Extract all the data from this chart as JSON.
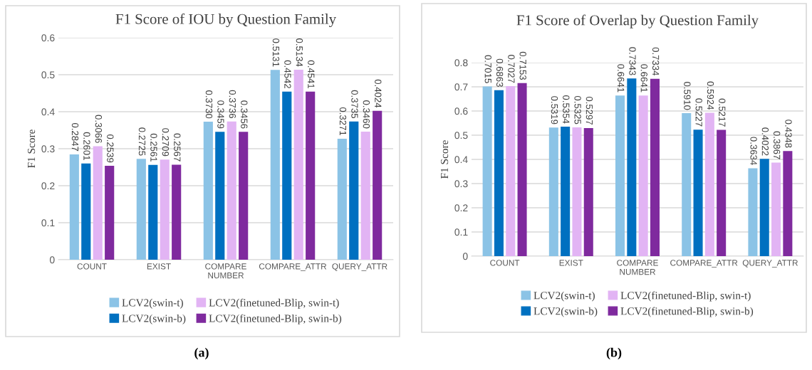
{
  "chart_data": [
    {
      "type": "bar",
      "title": "F1 Score of IOU by Question Family",
      "ylabel": "F1 Score",
      "categories": [
        "COUNT",
        "EXIST",
        "COMPARE\nNUMBER",
        "COMPARE_ATTR",
        "QUERY_ATTR"
      ],
      "ylim": [
        0,
        0.6
      ],
      "yticks": [
        0,
        0.1,
        0.2,
        0.3,
        0.4,
        0.5,
        0.6
      ],
      "grid": "y",
      "legend": "bottom",
      "annotations": [
        "(a)"
      ],
      "series": [
        {
          "name": "LCV2(swin-t)",
          "color": "#8bc3e6",
          "values": [
            0.2847,
            0.2725,
            0.373,
            0.5131,
            0.3271
          ],
          "value_labels": [
            "0.2847",
            "0.2725",
            "0.3730",
            "0.5131",
            "0.3271"
          ]
        },
        {
          "name": "LCV2(swin-b)",
          "color": "#0070c0",
          "values": [
            0.2601,
            0.2561,
            0.3459,
            0.4542,
            0.3735
          ],
          "value_labels": [
            "0.2601",
            "0.2561",
            "0.3459",
            "0.4542",
            "0.3735"
          ]
        },
        {
          "name": "LCV2(finetuned-Blip, swin-t)",
          "color": "#e2b4f4",
          "values": [
            0.3066,
            0.2709,
            0.3736,
            0.5134,
            0.346
          ],
          "value_labels": [
            "0.3066",
            "0.2709",
            "0.3736",
            "0.5134",
            "0.3460"
          ]
        },
        {
          "name": "LCV2(finetuned-Blip, swin-b)",
          "color": "#7f2a9e",
          "values": [
            0.2539,
            0.2567,
            0.3456,
            0.4541,
            0.4024
          ],
          "value_labels": [
            "0.2539",
            "0.2567",
            "0.3456",
            "0.4541",
            "0.4024"
          ]
        }
      ]
    },
    {
      "type": "bar",
      "title": "F1 Score of Overlap by Question Family",
      "ylabel": "F1 Score",
      "categories": [
        "COUNT",
        "EXIST",
        "COMPARE\nNUMBER",
        "COMPARE_ATTR",
        "QUERY_ATTR"
      ],
      "ylim": [
        0,
        0.8
      ],
      "yticks": [
        0,
        0.1,
        0.2,
        0.3,
        0.4,
        0.5,
        0.6,
        0.7,
        0.8
      ],
      "grid": "y",
      "legend": "bottom",
      "annotations": [
        "(b)"
      ],
      "series": [
        {
          "name": "LCV2(swin-t)",
          "color": "#8bc3e6",
          "values": [
            0.7015,
            0.5319,
            0.6641,
            0.591,
            0.3634
          ],
          "value_labels": [
            "0.7015",
            "0.5319",
            "0.6641",
            "0.5910",
            "0.3634"
          ]
        },
        {
          "name": "LCV2(swin-b)",
          "color": "#0070c0",
          "values": [
            0.6863,
            0.5354,
            0.7343,
            0.5227,
            0.4022
          ],
          "value_labels": [
            "0.6863",
            "0.5354",
            "0.7343",
            "0.5227",
            "0.4022"
          ]
        },
        {
          "name": "LCV2(finetuned-Blip, swin-t)",
          "color": "#e2b4f4",
          "values": [
            0.7027,
            0.5325,
            0.6641,
            0.5924,
            0.3867
          ],
          "value_labels": [
            "0.7027",
            "0.5325",
            "0.6641",
            "0.5924",
            "0.3867"
          ]
        },
        {
          "name": "LCV2(finetuned-Blip, swin-b)",
          "color": "#7f2a9e",
          "values": [
            0.7153,
            0.5297,
            0.7334,
            0.5217,
            0.4348
          ],
          "value_labels": [
            "0.7153",
            "0.5297",
            "0.7334",
            "0.5217",
            "0.4348"
          ]
        }
      ]
    }
  ]
}
